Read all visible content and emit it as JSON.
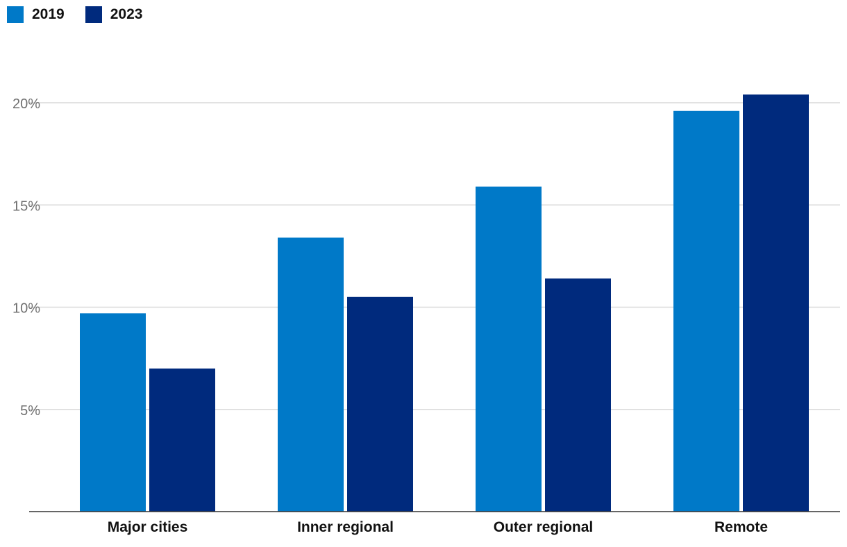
{
  "chart_data": {
    "type": "bar",
    "categories": [
      "Major cities",
      "Inner regional",
      "Outer regional",
      "Remote"
    ],
    "series": [
      {
        "name": "2019",
        "color": "#0079C8",
        "values": [
          9.7,
          13.4,
          15.9,
          19.6
        ]
      },
      {
        "name": "2023",
        "color": "#002A7D",
        "values": [
          7.0,
          10.5,
          11.4,
          20.4
        ]
      }
    ],
    "y_ticks": [
      {
        "value": 5,
        "label": "5%"
      },
      {
        "value": 10,
        "label": "10%"
      },
      {
        "value": 15,
        "label": "15%"
      },
      {
        "value": 20,
        "label": "20%"
      }
    ],
    "ylim": [
      0,
      22
    ],
    "grid": true,
    "legend": "top-left"
  }
}
